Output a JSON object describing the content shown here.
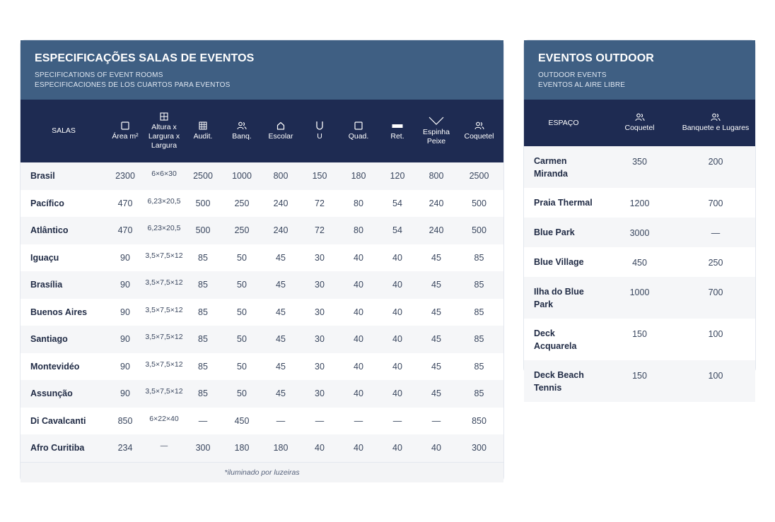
{
  "rooms": {
    "title": "ESPECIFICAÇÕES SALAS DE EVENTOS",
    "subtitle_en": "SPECIFICATIONS OF EVENT ROOMS",
    "subtitle_es": "ESPECIFICACIONES DE LOS CUARTOS PARA EVENTOS",
    "columns": {
      "salas": "SALAS",
      "area": "Área m²",
      "dims": "Altura x Largura x Largura",
      "audit": "Audit.",
      "banq": "Banq.",
      "escolar": "Escolar",
      "u": "U",
      "quad": "Quad.",
      "ret": "Ret.",
      "espinha": "Espinha Peixe",
      "coquetel": "Coquetel"
    },
    "column_icons": {
      "area": "square-icon",
      "dims": "grid-icon",
      "audit": "grid-icon",
      "banq": "people-icon",
      "escolar": "house-icon",
      "u": "u-shape-icon",
      "quad": "square-icon",
      "ret": "rectangle-icon",
      "espinha": "chevron-icon",
      "coquetel": "people-icon"
    },
    "rows": [
      [
        "Brasil",
        "2300",
        "6×6×30",
        "2500",
        "1000",
        "800",
        "150",
        "180",
        "120",
        "800",
        "2500"
      ],
      [
        "Pacífico",
        "470",
        "6,23×20,5",
        "500",
        "250",
        "240",
        "72",
        "80",
        "54",
        "240",
        "500"
      ],
      [
        "Atlântico",
        "470",
        "6,23×20,5",
        "500",
        "250",
        "240",
        "72",
        "80",
        "54",
        "240",
        "500"
      ],
      [
        "Iguaçu",
        "90",
        "3,5×7,5×12",
        "85",
        "50",
        "45",
        "30",
        "40",
        "40",
        "45",
        "85"
      ],
      [
        "Brasília",
        "90",
        "3,5×7,5×12",
        "85",
        "50",
        "45",
        "30",
        "40",
        "40",
        "45",
        "85"
      ],
      [
        "Buenos Aires",
        "90",
        "3,5×7,5×12",
        "85",
        "50",
        "45",
        "30",
        "40",
        "40",
        "45",
        "85"
      ],
      [
        "Santiago",
        "90",
        "3,5×7,5×12",
        "85",
        "50",
        "45",
        "30",
        "40",
        "40",
        "45",
        "85"
      ],
      [
        "Montevidéo",
        "90",
        "3,5×7,5×12",
        "85",
        "50",
        "45",
        "30",
        "40",
        "40",
        "45",
        "85"
      ],
      [
        "Assunção",
        "90",
        "3,5×7,5×12",
        "85",
        "50",
        "45",
        "30",
        "40",
        "40",
        "45",
        "85"
      ],
      [
        "Di Cavalcanti",
        "850",
        "6×22×40",
        "—",
        "450",
        "—",
        "—",
        "—",
        "—",
        "—",
        "850"
      ],
      [
        "Afro Curitiba",
        "234",
        "—",
        "300",
        "180",
        "180",
        "40",
        "40",
        "40",
        "40",
        "300"
      ]
    ],
    "footnote": "*iluminado por luzeiras"
  },
  "outdoor": {
    "title": "EVENTOS OUTDOOR",
    "subtitle_en": "OUTDOOR EVENTS",
    "subtitle_es": "EVENTOS AL AIRE LIBRE",
    "columns": {
      "espaco": "ESPAÇO",
      "coquetel": "Coquetel",
      "banquete": "Banquete e Lugares"
    },
    "column_icons": {
      "coquetel": "people-icon",
      "banquete": "people-icon"
    },
    "rows": [
      [
        "Carmen Miranda",
        "350",
        "200"
      ],
      [
        "Praia Thermal",
        "1200",
        "700"
      ],
      [
        "Blue Park",
        "3000",
        "—"
      ],
      [
        "Blue Village",
        "450",
        "250"
      ],
      [
        "Ilha do Blue Park",
        "1000",
        "700"
      ],
      [
        "Deck Acquarela",
        "150",
        "100"
      ],
      [
        "Deck Beach Tennis",
        "150",
        "100"
      ]
    ]
  },
  "colors": {
    "header_band": "#3f5f83",
    "table_header": "#1e2b52",
    "row_stripe": "#f5f6f8"
  }
}
